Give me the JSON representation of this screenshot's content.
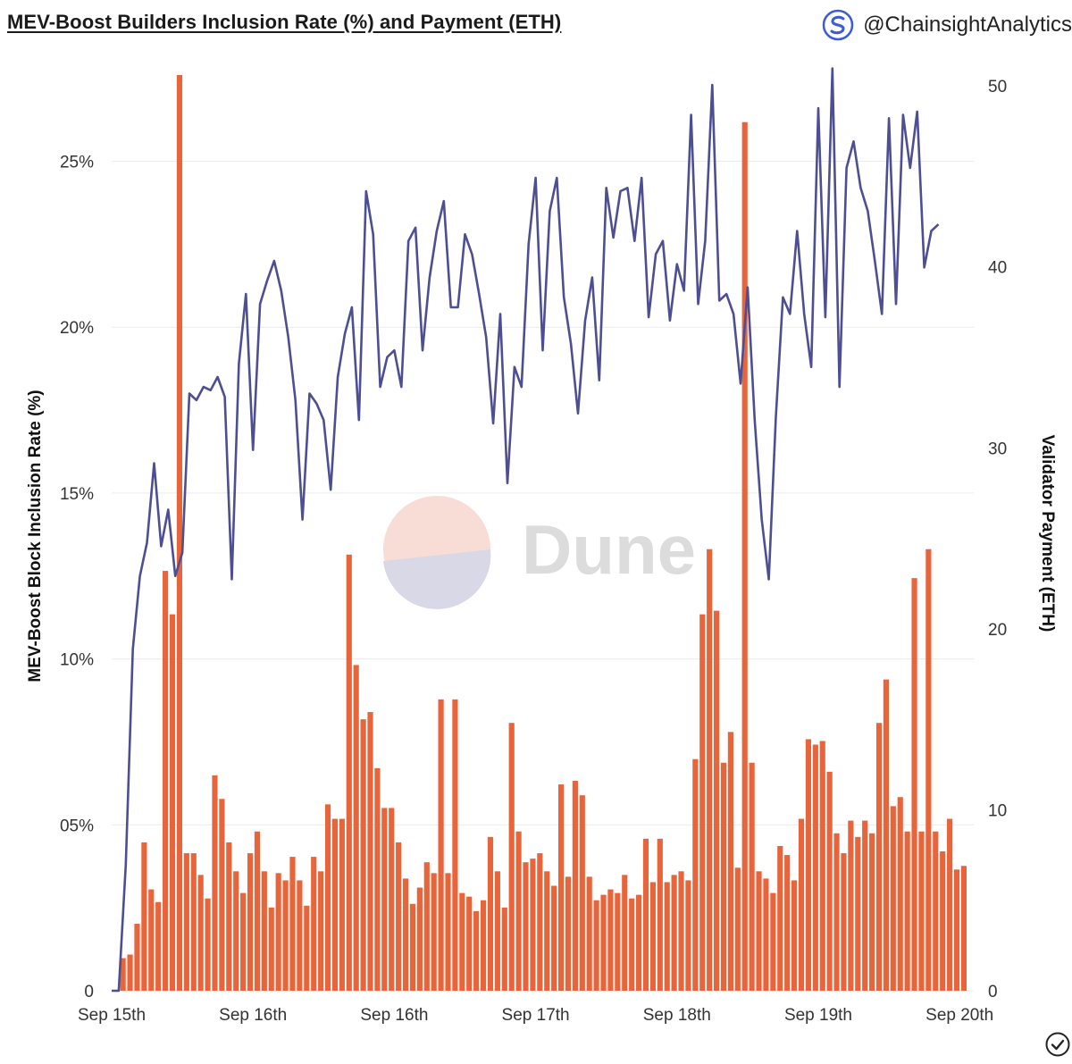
{
  "header": {
    "title": "MEV-Boost Builders Inclusion Rate (%) and Payment (ETH)",
    "brand_handle": "@ChainsightAnalytics"
  },
  "watermark": {
    "text": "Dune"
  },
  "chart_data": {
    "type": "bar+line",
    "title": "MEV-Boost Builders Inclusion Rate (%) and Payment (ETH)",
    "ylabel_left": "MEV-Boost Block Inclusion Rate (%)",
    "ylabel_right": "Validator Payment (ETH)",
    "y_left_ticks": [
      "0",
      "05%",
      "10%",
      "15%",
      "20%",
      "25%"
    ],
    "y_left_values": [
      0,
      5,
      10,
      15,
      20,
      25
    ],
    "y_left_range": [
      0,
      27.6
    ],
    "y_right_ticks": [
      "0",
      "10",
      "20",
      "30",
      "40",
      "50"
    ],
    "y_right_values": [
      0,
      10,
      20,
      30,
      40,
      50
    ],
    "y_right_range": [
      0,
      50.6
    ],
    "x_tick_labels": [
      "Sep 15th",
      "Sep 16th",
      "Sep 16th",
      "Sep 17th",
      "Sep 18th",
      "Sep 19th",
      "Sep 20th"
    ],
    "x_tick_positions": [
      0,
      20,
      40,
      60,
      80,
      100,
      120
    ],
    "x_range": [
      0,
      122
    ],
    "colors": {
      "bar": "#e8653c",
      "line": "#4e4e93",
      "grid": "#ececec"
    },
    "series": [
      {
        "name": "Validator Payment (ETH)",
        "kind": "bar",
        "axis": "right",
        "values": [
          0,
          1.8,
          2.0,
          3.7,
          8.2,
          5.6,
          4.9,
          23.2,
          20.8,
          50.6,
          7.6,
          7.6,
          6.4,
          5.1,
          11.9,
          10.6,
          8.2,
          6.6,
          5.4,
          7.6,
          8.8,
          6.6,
          4.6,
          6.5,
          6.1,
          7.4,
          6.1,
          4.7,
          7.4,
          6.6,
          10.3,
          9.5,
          9.5,
          24.1,
          18.0,
          15.0,
          15.4,
          12.3,
          10.1,
          10.1,
          8.2,
          6.2,
          4.8,
          5.7,
          7.1,
          6.5,
          16.1,
          6.5,
          16.1,
          5.4,
          5.2,
          4.4,
          5.0,
          8.5,
          6.6,
          4.6,
          14.8,
          8.8,
          7.1,
          7.3,
          7.6,
          6.6,
          5.8,
          11.4,
          6.3,
          11.6,
          10.8,
          6.3,
          5.0,
          5.3,
          5.6,
          5.4,
          6.4,
          5.1,
          5.3,
          8.4,
          6.0,
          8.4,
          6.0,
          6.4,
          6.6,
          6.1,
          12.8,
          20.8,
          24.4,
          21.0,
          12.6,
          14.3,
          6.8,
          48.0,
          12.6,
          6.6,
          6.2,
          5.4,
          8.0,
          7.5,
          6.1,
          9.5,
          13.9,
          13.6,
          13.8,
          12.1,
          8.7,
          7.6,
          9.4,
          8.5,
          9.4,
          8.7,
          14.8,
          17.2,
          10.2,
          10.7,
          8.8,
          22.8,
          8.8,
          24.4,
          8.8,
          7.7,
          9.5,
          6.7,
          6.9
        ]
      },
      {
        "name": "MEV-Boost Block Inclusion Rate (%)",
        "kind": "line",
        "axis": "left",
        "values": [
          0,
          0,
          3.8,
          10.3,
          12.5,
          13.5,
          15.9,
          13.4,
          14.5,
          12.5,
          13.2,
          18.0,
          17.8,
          18.2,
          18.1,
          18.5,
          17.9,
          12.4,
          18.9,
          21.0,
          16.3,
          20.7,
          21.4,
          22.0,
          21.1,
          19.7,
          17.8,
          14.2,
          18.0,
          17.7,
          17.2,
          15.1,
          18.5,
          19.8,
          20.6,
          17.2,
          24.1,
          22.8,
          18.2,
          19.1,
          19.3,
          18.2,
          22.6,
          23.0,
          19.3,
          21.5,
          22.9,
          23.8,
          20.6,
          20.6,
          22.8,
          22.2,
          21.0,
          19.7,
          17.1,
          20.4,
          15.3,
          18.8,
          18.2,
          22.5,
          24.5,
          19.3,
          23.5,
          24.5,
          20.9,
          19.5,
          17.4,
          20.2,
          21.5,
          18.4,
          24.2,
          22.7,
          24.1,
          24.2,
          22.6,
          24.5,
          20.3,
          22.2,
          22.6,
          20.2,
          21.9,
          21.1,
          26.4,
          20.7,
          22.6,
          27.3,
          20.8,
          21.0,
          20.4,
          18.3,
          21.2,
          17.2,
          14.2,
          12.4,
          17.3,
          20.9,
          20.4,
          22.9,
          20.4,
          18.8,
          26.6,
          20.3,
          27.8,
          18.2,
          24.8,
          25.6,
          24.2,
          23.5,
          22.0,
          20.4,
          26.3,
          20.7,
          26.4,
          24.8,
          26.5,
          21.8,
          22.9,
          23.1
        ]
      }
    ]
  }
}
